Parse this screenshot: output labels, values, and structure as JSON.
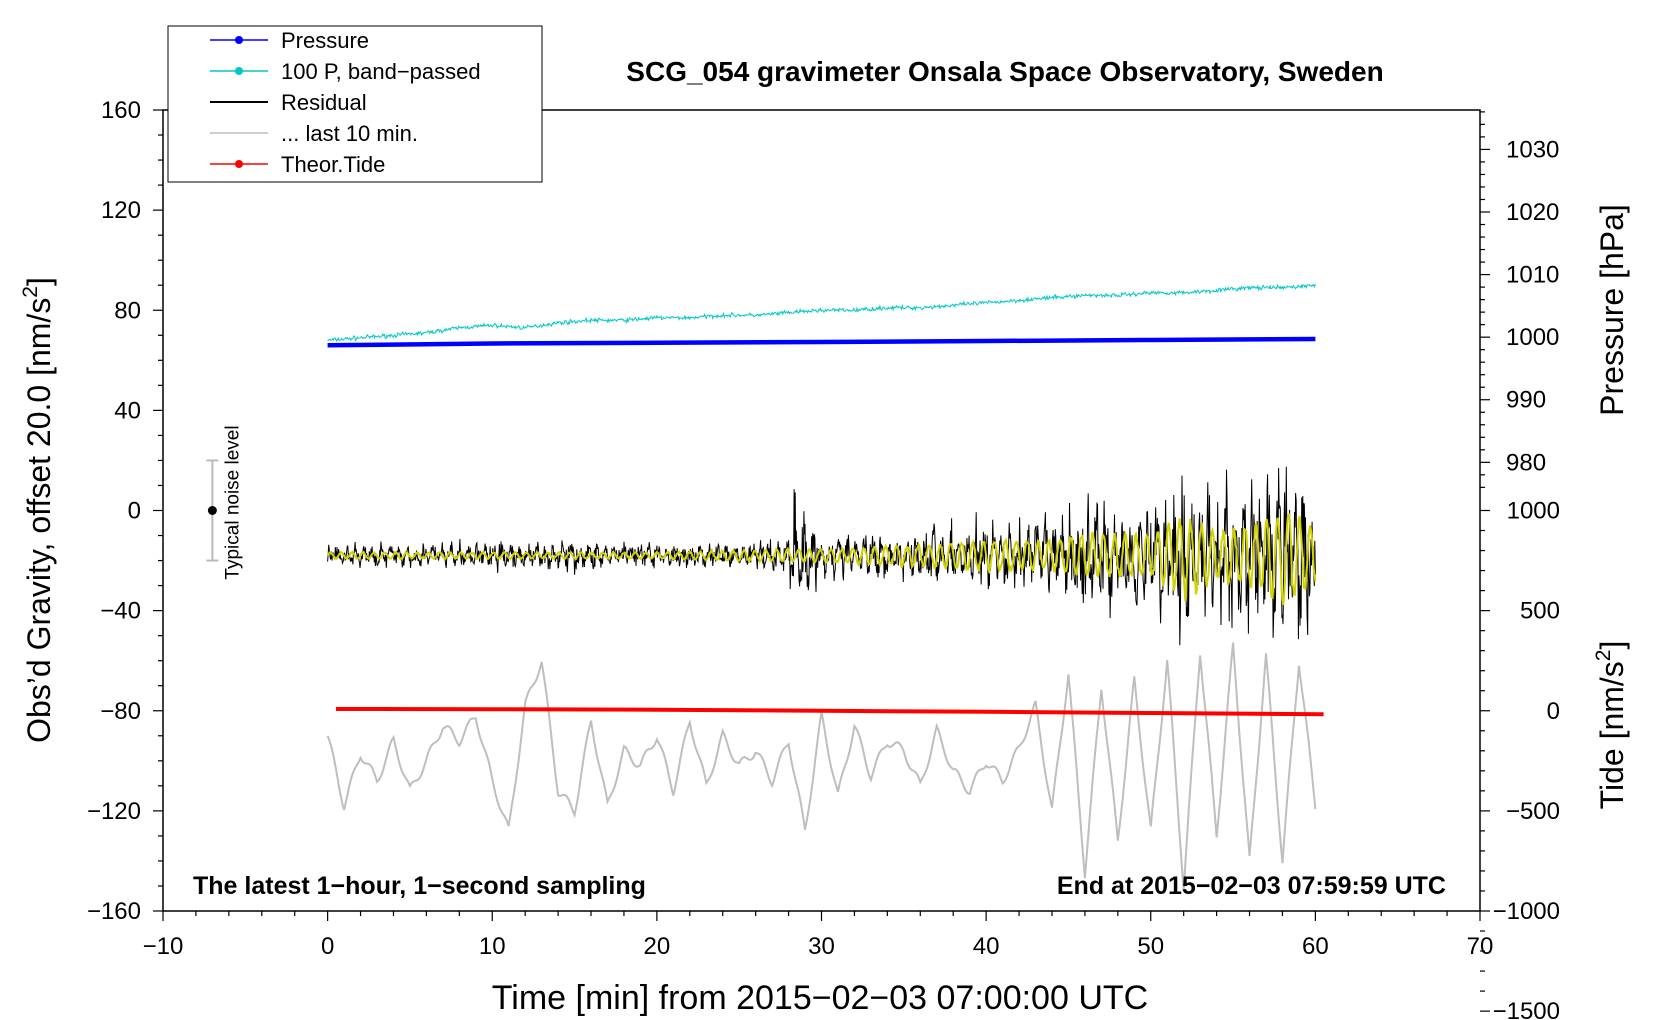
{
  "chart_data": {
    "type": "line",
    "title": "SCG_054 gravimeter Onsala Space Observatory, Sweden",
    "xlabel": "Time [min] from 2015−02−03 07:00:00 UTC",
    "ylabel": "Obs'd Gravity, offset 20.0 [nm/s²]",
    "ylabel_parts": {
      "main": "Obs’d Gravity, offset 20.0 [nm/s",
      "sup": "2",
      "close": "]"
    },
    "pressure_axis_label": "Pressure [hPa]",
    "tide_axis_label_parts": {
      "main": "Tide [nm/s",
      "sup": "2",
      "close": "]"
    },
    "xlim": [
      -10,
      70
    ],
    "ylim": [
      -160,
      160
    ],
    "x_ticks": [
      -10,
      0,
      10,
      20,
      30,
      40,
      50,
      60,
      70
    ],
    "x_tick_labels": [
      "−10",
      "0",
      "10",
      "20",
      "30",
      "40",
      "50",
      "60",
      "70"
    ],
    "y_ticks": [
      160,
      120,
      80,
      40,
      0,
      -40,
      -80,
      -120,
      -160
    ],
    "y_tick_labels": [
      "160",
      "120",
      "80",
      "40",
      "0",
      "−40",
      "−80",
      "−120",
      "−160"
    ],
    "pressure_ticks": [
      1030,
      1020,
      1010,
      1000,
      990,
      980
    ],
    "pressure_tick_labels": [
      "1030",
      "1020",
      "1010",
      "1000",
      "990",
      "980"
    ],
    "pressure_axis_anchor": {
      "value_at_gravity_80": 1004.3,
      "hpa_per_nms2": 0.4
    },
    "tide_ticks": [
      1000,
      500,
      0,
      -500,
      -1000,
      -1500
    ],
    "tide_tick_labels": [
      "1000",
      "500",
      "0",
      "−500",
      "−1000",
      "−1500"
    ],
    "tide_axis_anchor": {
      "value_at_gravity_minus_80": 0,
      "nms2_per_nms2": 12.5
    },
    "legend": [
      {
        "label": "Pressure",
        "color": "#0000ff",
        "marker": true
      },
      {
        "label": "100 P, band−passed",
        "color": "#00c8c8",
        "marker": true
      },
      {
        "label": "Residual",
        "color": "#000000",
        "marker": false
      },
      {
        "label": "... last 10 min.",
        "color": "#bebebe",
        "marker": false
      },
      {
        "label": "Theor.Tide",
        "color": "#ff0000",
        "marker": true
      }
    ],
    "legend_position": "top-left",
    "annotations": {
      "bottom_left": "The latest 1−hour, 1−second sampling",
      "bottom_right": "End at 2015−02−03 07:59:59 UTC",
      "noise_label": "Typical noise level"
    },
    "noise_bar": {
      "x": -7,
      "center": 0,
      "half_range": 20
    },
    "colors": {
      "pressure": "#0000ff",
      "band_passed": "#00c8c8",
      "residual": "#000000",
      "residual_filtered": "#d2d200",
      "last10": "#bebebe",
      "tide": "#ff0000"
    },
    "series": [
      {
        "name": "Pressure",
        "x": [
          0,
          10,
          20,
          30,
          40,
          50,
          60
        ],
        "values": [
          66.0,
          66.7,
          67.0,
          67.3,
          67.7,
          68.1,
          68.5
        ]
      },
      {
        "name": "100 P, band-passed",
        "x": [
          0,
          2,
          4,
          6,
          8,
          10,
          12,
          14,
          16,
          18,
          20,
          22,
          24,
          26,
          28,
          30,
          32,
          34,
          36,
          38,
          40,
          42,
          44,
          46,
          48,
          50,
          52,
          54,
          56,
          58,
          60
        ],
        "values": [
          68,
          69,
          70,
          71,
          73,
          74,
          73,
          75,
          76,
          76,
          77,
          77,
          78,
          78,
          79,
          80,
          80,
          81,
          81,
          82,
          83,
          84,
          85,
          86,
          86,
          87,
          87,
          88,
          89,
          89,
          90
        ],
        "noise_amplitude": 1.2
      },
      {
        "name": "Residual",
        "x": [
          0,
          5,
          10,
          15,
          20,
          25,
          28,
          28.3,
          30,
          35,
          38,
          40,
          44,
          45,
          46,
          48,
          50,
          52,
          54,
          56,
          58,
          60
        ],
        "values": [
          -18,
          -18,
          -18,
          -18,
          -18,
          -18,
          -18,
          -18,
          -18,
          -18,
          -18,
          -18,
          -18,
          -18,
          -18,
          -18,
          -18,
          -18,
          -18,
          -18,
          -18,
          -18
        ],
        "envelope": [
          6,
          6,
          7,
          7,
          6,
          6,
          10,
          30,
          10,
          11,
          16,
          18,
          18,
          22,
          32,
          24,
          30,
          34,
          32,
          36,
          46,
          40
        ]
      },
      {
        "name": "Residual (filtered)",
        "x": [
          0,
          10,
          20,
          28,
          30,
          38,
          40,
          44,
          46,
          50,
          52,
          54,
          56,
          58,
          60
        ],
        "values": [
          -18,
          -18,
          -18,
          -18,
          -18,
          -18,
          -18,
          -18,
          -18,
          -18,
          -18,
          -18,
          -18,
          -18,
          -18
        ],
        "envelope": [
          1.5,
          1.5,
          1.5,
          3,
          3,
          6,
          7,
          7,
          10,
          10,
          20,
          12,
          14,
          22,
          14
        ]
      },
      {
        "name": "... last 10 min.",
        "x": [
          0,
          1,
          2,
          3,
          4,
          5,
          6,
          7,
          8,
          9,
          10,
          11,
          12,
          13,
          14,
          15,
          16,
          17,
          18,
          19,
          20,
          21,
          22,
          23,
          24,
          25,
          26,
          27,
          28,
          29,
          30,
          31,
          32,
          33,
          34,
          35,
          36,
          37,
          38,
          39,
          40,
          41,
          42,
          43,
          44,
          45,
          46,
          47,
          48,
          49,
          50,
          51,
          52,
          53,
          54,
          55,
          56,
          57,
          58,
          59,
          60
        ],
        "values": [
          -90,
          -118,
          -97,
          -108,
          -92,
          -112,
          -100,
          -86,
          -92,
          -82,
          -108,
          -128,
          -78,
          -60,
          -112,
          -120,
          -84,
          -118,
          -96,
          -102,
          -90,
          -112,
          -84,
          -110,
          -90,
          -102,
          -96,
          -108,
          -92,
          -128,
          -82,
          -114,
          -86,
          -106,
          -92,
          -96,
          -110,
          -88,
          -104,
          -112,
          -100,
          -108,
          -95,
          -78,
          -120,
          -65,
          -145,
          -70,
          -132,
          -68,
          -128,
          -60,
          -150,
          -56,
          -130,
          -54,
          -140,
          -58,
          -140,
          -60,
          -118
        ],
        "envelope_growth": true
      },
      {
        "name": "Theor.Tide",
        "x": [
          0.5,
          10,
          20,
          30,
          40,
          50,
          60.5
        ],
        "values": [
          -79.3,
          -79.4,
          -79.6,
          -80.0,
          -80.4,
          -80.9,
          -81.4
        ]
      }
    ]
  }
}
